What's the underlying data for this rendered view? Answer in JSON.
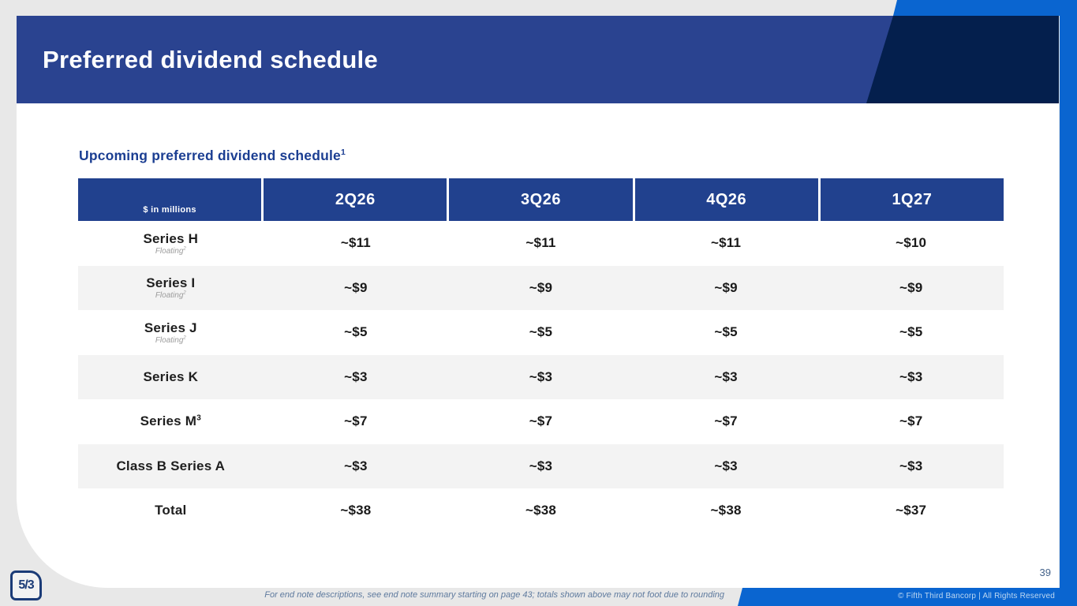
{
  "slide": {
    "title": "Preferred dividend schedule",
    "page_number": "39",
    "footnote": "For end note descriptions, see end note summary starting on page 43; totals shown above may not foot due to rounding",
    "copyright": "© Fifth Third Bancorp | All Rights Reserved",
    "logo_text": "5/3"
  },
  "table": {
    "subtitle": "Upcoming preferred dividend schedule",
    "subtitle_sup": "1",
    "corner_label": "$ in millions",
    "columns": [
      "2Q26",
      "3Q26",
      "4Q26",
      "1Q27"
    ],
    "rows": [
      {
        "label": "Series H",
        "label_sup": "",
        "sub": "Floating",
        "sub_sup": "2",
        "shaded": false,
        "values": [
          "~$11",
          "~$11",
          "~$11",
          "~$10"
        ]
      },
      {
        "label": "Series I",
        "label_sup": "",
        "sub": "Floating",
        "sub_sup": "2",
        "shaded": true,
        "values": [
          "~$9",
          "~$9",
          "~$9",
          "~$9"
        ]
      },
      {
        "label": "Series J",
        "label_sup": "",
        "sub": "Floating",
        "sub_sup": "2",
        "shaded": false,
        "values": [
          "~$5",
          "~$5",
          "~$5",
          "~$5"
        ]
      },
      {
        "label": "Series K",
        "label_sup": "",
        "sub": "",
        "sub_sup": "",
        "shaded": true,
        "values": [
          "~$3",
          "~$3",
          "~$3",
          "~$3"
        ]
      },
      {
        "label": "Series M",
        "label_sup": "3",
        "sub": "",
        "sub_sup": "",
        "shaded": false,
        "values": [
          "~$7",
          "~$7",
          "~$7",
          "~$7"
        ]
      },
      {
        "label": "Class B Series A",
        "label_sup": "",
        "sub": "",
        "sub_sup": "",
        "shaded": true,
        "values": [
          "~$3",
          "~$3",
          "~$3",
          "~$3"
        ]
      },
      {
        "label": "Total",
        "label_sup": "",
        "sub": "",
        "sub_sup": "",
        "shaded": false,
        "values": [
          "~$38",
          "~$38",
          "~$38",
          "~$37"
        ]
      }
    ]
  },
  "colors": {
    "header_band_blue": "#2a4390",
    "table_header_blue": "#21418e",
    "accent_navy": "#041f4d",
    "brand_bright_blue": "#0a65d0",
    "subtitle_blue": "#1b3e92",
    "shaded_row_gray": "#f3f3f3",
    "page_gray": "#e8e8e8"
  }
}
